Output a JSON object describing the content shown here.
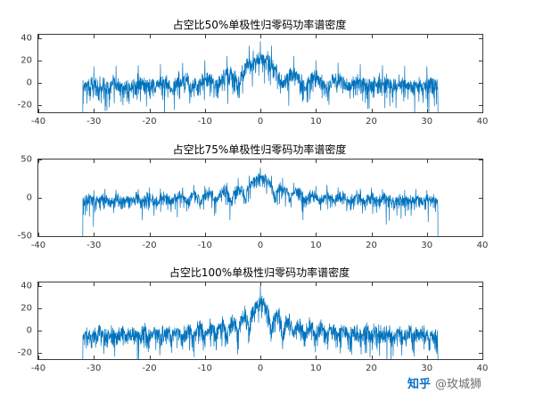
{
  "figure": {
    "background": "#ffffff"
  },
  "chart_data": [
    {
      "type": "line",
      "title": "占空比50%单极性归零码功率谱密度",
      "xlabel": "",
      "ylabel": "",
      "xlim": [
        -40,
        40
      ],
      "xticks": [
        -40,
        -30,
        -20,
        -10,
        0,
        10,
        20,
        30,
        40
      ],
      "ylim": [
        -26,
        43
      ],
      "yticks": [
        40,
        20,
        0,
        -20
      ],
      "grid": false,
      "legend": null,
      "line_color": "#0072BD",
      "x_data_range": [
        -32,
        32
      ],
      "duty_cycle": 0.5,
      "envelope": "sinc_squared",
      "peak_db": 22,
      "noise_floor_db": -2,
      "line_gain_db": 15,
      "spectral_lines": [
        -30,
        -26,
        -22,
        -18,
        -14,
        -10,
        -6,
        -2,
        0,
        2,
        6,
        10,
        14,
        18,
        22,
        26,
        30
      ]
    },
    {
      "type": "line",
      "title": "占空比75%单极性归零码功率谱密度",
      "xlabel": "",
      "ylabel": "",
      "xlim": [
        -40,
        40
      ],
      "xticks": [
        -40,
        -30,
        -20,
        -10,
        0,
        10,
        20,
        30,
        40
      ],
      "ylim": [
        -50,
        50
      ],
      "yticks": [
        50,
        0,
        -50
      ],
      "grid": false,
      "legend": null,
      "line_color": "#0072BD",
      "x_data_range": [
        -32,
        32
      ],
      "duty_cycle": 0.75,
      "envelope": "sinc_squared",
      "peak_db": 27,
      "noise_floor_db": -4,
      "line_gain_db": 12,
      "spectral_lines": [
        -30,
        -28,
        -26,
        -22,
        -20,
        -18,
        -14,
        -12,
        -10,
        -6,
        -4,
        -2,
        0,
        2,
        4,
        6,
        10,
        12,
        14,
        18,
        20,
        22,
        26,
        28,
        30
      ]
    },
    {
      "type": "line",
      "title": "占空比100%单极性归零码功率谱密度",
      "xlabel": "",
      "ylabel": "",
      "xlim": [
        -40,
        40
      ],
      "xticks": [
        -40,
        -30,
        -20,
        -10,
        0,
        10,
        20,
        30,
        40
      ],
      "ylim": [
        -26,
        43
      ],
      "yticks": [
        40,
        20,
        0,
        -20
      ],
      "grid": false,
      "legend": null,
      "line_color": "#0072BD",
      "x_data_range": [
        -32,
        32
      ],
      "duty_cycle": 1.0,
      "envelope": "sinc_squared",
      "peak_db": 27,
      "noise_floor_db": -5,
      "line_gain_db": 13,
      "spectral_lines": [
        0
      ]
    }
  ],
  "watermark": {
    "brand": "知乎",
    "user": "@玫城狮"
  }
}
